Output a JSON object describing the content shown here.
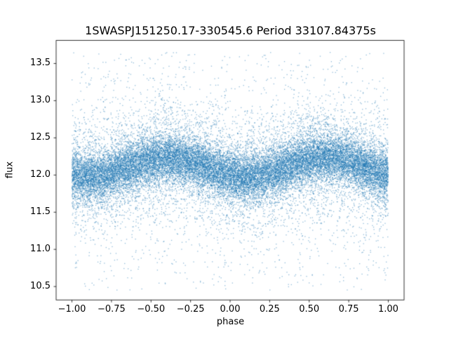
{
  "chart_data": {
    "type": "scatter",
    "title": "1SWASPJ151250.17-330545.6 Period 33107.84375s",
    "xlabel": "phase",
    "ylabel": "flux",
    "xlim": [
      -1.1,
      1.1
    ],
    "ylim": [
      10.32,
      13.81
    ],
    "xtick_values": [
      -1.0,
      -0.75,
      -0.5,
      -0.25,
      0.0,
      0.25,
      0.5,
      0.75,
      1.0
    ],
    "xtick_labels": [
      "−1.00",
      "−0.75",
      "−0.50",
      "−0.25",
      "0.00",
      "0.25",
      "0.50",
      "0.75",
      "1.00"
    ],
    "ytick_values": [
      10.5,
      11.0,
      11.5,
      12.0,
      12.5,
      13.0,
      13.5
    ],
    "ytick_labels": [
      "10.5",
      "11.0",
      "11.5",
      "12.0",
      "12.5",
      "13.0",
      "13.5"
    ],
    "grid": false,
    "legend": null,
    "marker_color": "#1f77b4",
    "marker_size_px": 1.3,
    "marker_alpha": 0.5,
    "scatter_model": {
      "description": "Phase-folded light curve: dense noisy band of ~28000 points centered near flux 12.1 with a shallow sinusoidal modulation (one cycle per unit phase, maxima near phase -0.4 and +0.6, minima near -0.9 and +0.1), plus sparse outliers spanning flux 10.45 to 13.65 over phase -1 to +1.",
      "seed": 1337,
      "n_points": 28000,
      "phase_min": -1.0,
      "phase_max": 1.0,
      "mean_flux": 12.1,
      "sine_amplitude": 0.13,
      "sine_phase_offset": -0.65,
      "core_fraction": 0.7,
      "core_sigma": 0.16,
      "mid_fraction": 0.26,
      "mid_sigma": 0.42,
      "uniform_fraction": 0.04,
      "flux_min": 10.45,
      "flux_max": 13.65
    }
  }
}
